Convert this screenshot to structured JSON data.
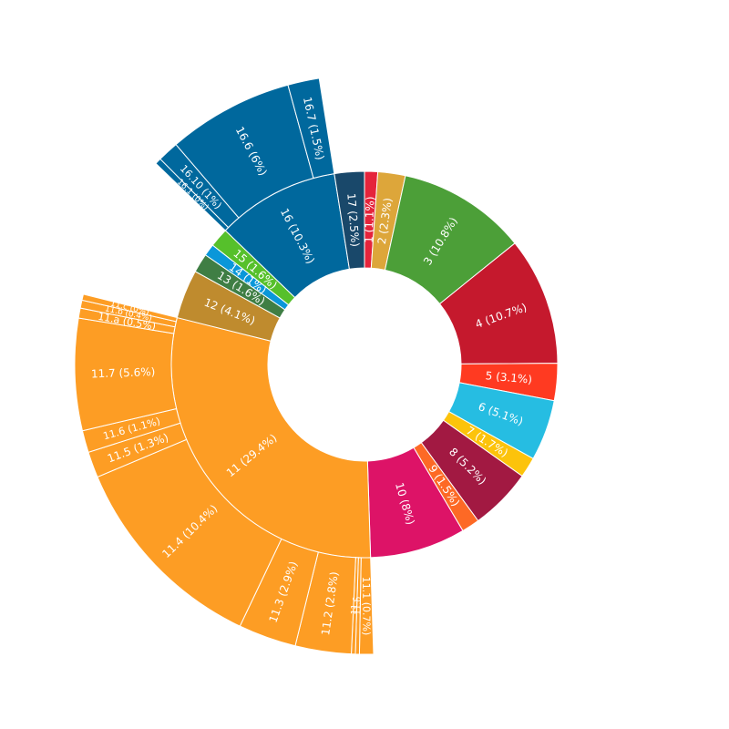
{
  "chart_data": {
    "type": "sunburst",
    "title": "",
    "inner": [
      {
        "id": "1",
        "label": "1 (1.1%)",
        "value": 1.1,
        "color": "#e5243b"
      },
      {
        "id": "2",
        "label": "2 (2.3%)",
        "value": 2.3,
        "color": "#dda63a"
      },
      {
        "id": "3",
        "label": "3 (10.8%)",
        "value": 10.8,
        "color": "#4c9f38"
      },
      {
        "id": "4",
        "label": "4 (10.7%)",
        "value": 10.7,
        "color": "#c5192d"
      },
      {
        "id": "5",
        "label": "5 (3.1%)",
        "value": 3.1,
        "color": "#ff3a21"
      },
      {
        "id": "6",
        "label": "6 (5.1%)",
        "value": 5.1,
        "color": "#26bde2"
      },
      {
        "id": "7",
        "label": "7 (1.7%)",
        "value": 1.7,
        "color": "#fcc30b"
      },
      {
        "id": "8",
        "label": "8 (5.2%)",
        "value": 5.2,
        "color": "#a21942"
      },
      {
        "id": "9",
        "label": "9 (1.5%)",
        "value": 1.5,
        "color": "#fd6925"
      },
      {
        "id": "10",
        "label": "10 (8%)",
        "value": 8.0,
        "color": "#dd1367"
      },
      {
        "id": "11",
        "label": "11 (29.4%)",
        "value": 29.4,
        "color": "#fd9d24"
      },
      {
        "id": "12",
        "label": "12 (4.1%)",
        "value": 4.1,
        "color": "#bf8b2e"
      },
      {
        "id": "13",
        "label": "13 (1.6%)",
        "value": 1.6,
        "color": "#3f7e44"
      },
      {
        "id": "14",
        "label": "14 (1%)",
        "value": 1.0,
        "color": "#0a97d9"
      },
      {
        "id": "15",
        "label": "15 (1.6%)",
        "value": 1.6,
        "color": "#56c02b"
      },
      {
        "id": "16",
        "label": "16 (10.3%)",
        "value": 10.3,
        "color": "#00689d"
      },
      {
        "id": "17",
        "label": "17 (2.5%)",
        "value": 2.5,
        "color": "#19486a"
      }
    ],
    "outer": [
      {
        "parent": "11",
        "label": "11.1 (0.7%)",
        "value": 0.7
      },
      {
        "parent": "11",
        "label": "11.b",
        "value": 0.2
      },
      {
        "parent": "11",
        "label": "11.c",
        "value": 0.2
      },
      {
        "parent": "11",
        "label": "11.2 (2.8%)",
        "value": 2.8
      },
      {
        "parent": "11",
        "label": "11.3 (2.9%)",
        "value": 2.9
      },
      {
        "parent": "11",
        "label": "11.4 (10.4%)",
        "value": 10.4
      },
      {
        "parent": "11",
        "label": "11.5 (1.3%)",
        "value": 1.3
      },
      {
        "parent": "11",
        "label": "11.6 (1.1%)",
        "value": 1.1
      },
      {
        "parent": "11",
        "label": "11.7 (5.6%)",
        "value": 5.6
      },
      {
        "parent": "11",
        "label": "11.a (0.5%)",
        "value": 0.5
      },
      {
        "parent": "11",
        "label": "11.b (0.4%)",
        "value": 0.4
      },
      {
        "parent": "11",
        "label": "11.c (0%)",
        "value": 0.3
      },
      {
        "parent": "16",
        "label": "16.1 (0%)",
        "value": 0.3
      },
      {
        "parent": "16",
        "label": "16.10 (1%)",
        "value": 1.0
      },
      {
        "parent": "16",
        "label": "16.6 (6%)",
        "value": 6.0
      },
      {
        "parent": "16",
        "label": "16.7 (1.5%)",
        "value": 1.5
      }
    ]
  }
}
